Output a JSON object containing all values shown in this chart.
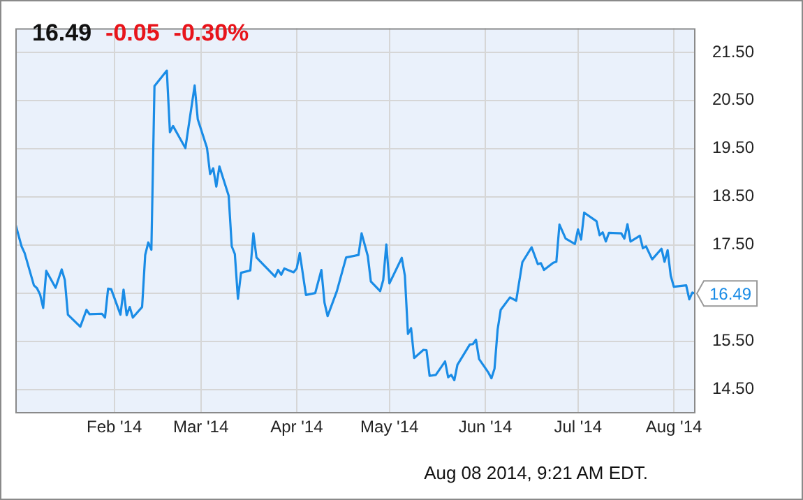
{
  "chart_data": {
    "type": "line",
    "x": [
      "2013-12-31",
      "2014-01-02",
      "2014-01-03",
      "2014-01-06",
      "2014-01-07",
      "2014-01-08",
      "2014-01-09",
      "2014-01-10",
      "2014-01-13",
      "2014-01-15",
      "2014-01-16",
      "2014-01-17",
      "2014-01-21",
      "2014-01-23",
      "2014-01-24",
      "2014-01-28",
      "2014-01-29",
      "2014-01-30",
      "2014-01-31",
      "2014-02-03",
      "2014-02-04",
      "2014-02-05",
      "2014-02-06",
      "2014-02-07",
      "2014-02-10",
      "2014-02-11",
      "2014-02-12",
      "2014-02-13",
      "2014-02-14",
      "2014-02-18",
      "2014-02-19",
      "2014-02-20",
      "2014-02-24",
      "2014-02-27",
      "2014-02-28",
      "2014-03-03",
      "2014-03-04",
      "2014-03-05",
      "2014-03-06",
      "2014-03-07",
      "2014-03-10",
      "2014-03-11",
      "2014-03-12",
      "2014-03-13",
      "2014-03-14",
      "2014-03-17",
      "2014-03-18",
      "2014-03-19",
      "2014-03-20",
      "2014-03-25",
      "2014-03-26",
      "2014-03-27",
      "2014-03-28",
      "2014-03-31",
      "2014-04-01",
      "2014-04-02",
      "2014-04-04",
      "2014-04-07",
      "2014-04-09",
      "2014-04-10",
      "2014-04-11",
      "2014-04-14",
      "2014-04-17",
      "2014-04-21",
      "2014-04-22",
      "2014-04-24",
      "2014-04-25",
      "2014-04-28",
      "2014-04-29",
      "2014-04-30",
      "2014-05-01",
      "2014-05-05",
      "2014-05-06",
      "2014-05-07",
      "2014-05-08",
      "2014-05-09",
      "2014-05-12",
      "2014-05-13",
      "2014-05-14",
      "2014-05-16",
      "2014-05-19",
      "2014-05-20",
      "2014-05-21",
      "2014-05-22",
      "2014-05-23",
      "2014-05-27",
      "2014-05-28",
      "2014-05-29",
      "2014-05-30",
      "2014-06-02",
      "2014-06-03",
      "2014-06-04",
      "2014-06-05",
      "2014-06-06",
      "2014-06-09",
      "2014-06-11",
      "2014-06-13",
      "2014-06-16",
      "2014-06-18",
      "2014-06-19",
      "2014-06-20",
      "2014-06-23",
      "2014-06-24",
      "2014-06-25",
      "2014-06-27",
      "2014-06-30",
      "2014-07-01",
      "2014-07-02",
      "2014-07-03",
      "2014-07-07",
      "2014-07-08",
      "2014-07-09",
      "2014-07-10",
      "2014-07-11",
      "2014-07-15",
      "2014-07-16",
      "2014-07-17",
      "2014-07-18",
      "2014-07-21",
      "2014-07-22",
      "2014-07-23",
      "2014-07-25",
      "2014-07-28",
      "2014-07-29",
      "2014-07-30",
      "2014-07-31",
      "2014-08-01",
      "2014-08-05",
      "2014-08-06",
      "2014-08-07",
      "2014-08-08"
    ],
    "series": [
      {
        "color": "#1a8ce6",
        "values": [
          17.94,
          17.47,
          17.33,
          16.66,
          16.6,
          16.47,
          16.19,
          16.96,
          16.61,
          16.99,
          16.77,
          16.05,
          15.8,
          16.15,
          16.06,
          16.07,
          15.99,
          16.59,
          16.58,
          16.05,
          16.57,
          16.04,
          16.21,
          15.99,
          16.21,
          17.29,
          17.55,
          17.4,
          20.8,
          21.12,
          19.84,
          19.97,
          19.51,
          20.81,
          20.11,
          19.51,
          18.97,
          19.09,
          18.71,
          19.13,
          18.52,
          17.47,
          17.31,
          16.38,
          16.92,
          16.97,
          17.74,
          17.24,
          17.17,
          16.84,
          16.98,
          16.88,
          17.01,
          16.93,
          17.01,
          17.33,
          16.46,
          16.5,
          16.98,
          16.3,
          16.02,
          16.54,
          17.24,
          17.29,
          17.74,
          17.27,
          16.74,
          16.54,
          16.77,
          17.51,
          16.7,
          17.23,
          16.86,
          15.65,
          15.77,
          15.15,
          15.32,
          15.31,
          14.78,
          14.8,
          15.08,
          14.75,
          14.8,
          14.69,
          15.01,
          15.43,
          15.44,
          15.53,
          15.13,
          14.85,
          14.73,
          14.93,
          15.74,
          16.15,
          16.41,
          16.34,
          17.14,
          17.45,
          17.1,
          17.12,
          16.98,
          17.13,
          17.15,
          17.92,
          17.63,
          17.52,
          17.82,
          17.61,
          18.17,
          17.99,
          17.7,
          17.76,
          17.57,
          17.75,
          17.74,
          17.63,
          17.93,
          17.57,
          17.69,
          17.43,
          17.47,
          17.2,
          17.42,
          17.15,
          17.39,
          16.86,
          16.63,
          16.66,
          16.37,
          16.51,
          16.49
        ]
      }
    ],
    "xlim": [
      "2013-12-31",
      "2014-08-08"
    ],
    "xticks": [
      {
        "value": "2014-02-01",
        "label": "Feb '14"
      },
      {
        "value": "2014-03-01",
        "label": "Mar '14"
      },
      {
        "value": "2014-04-01",
        "label": "Apr '14"
      },
      {
        "value": "2014-05-01",
        "label": "May '14"
      },
      {
        "value": "2014-06-01",
        "label": "Jun '14"
      },
      {
        "value": "2014-07-01",
        "label": "Jul '14"
      },
      {
        "value": "2014-08-01",
        "label": "Aug '14"
      }
    ],
    "ylim": [
      14,
      22
    ],
    "yticks": [
      {
        "value": 14.5,
        "label": "14.50"
      },
      {
        "value": 15.5,
        "label": "15.50"
      },
      {
        "value": 16.5,
        "label": null
      },
      {
        "value": 17.5,
        "label": "17.50"
      },
      {
        "value": 18.5,
        "label": "18.50"
      },
      {
        "value": 19.5,
        "label": "19.50"
      },
      {
        "value": 20.5,
        "label": "20.50"
      },
      {
        "value": 21.5,
        "label": "21.50"
      }
    ],
    "grid": true,
    "marker": "none",
    "line_style": "solid",
    "annotations": [
      "16.49",
      "-0.05",
      "-0.30%",
      "Aug 08 2014, 9:21 AM EDT.",
      {
        "text": "16.49",
        "x": "2014-08-08",
        "y": 16.49
      }
    ]
  }
}
